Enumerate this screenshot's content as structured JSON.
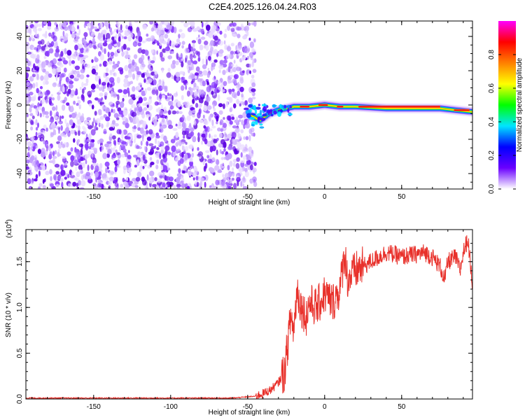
{
  "title": "C2E4.2025.126.04.24.R03",
  "chart_data": [
    {
      "type": "heatmap",
      "xlabel": "Height of straight line (km)",
      "ylabel": "Frequency (Hz)",
      "xlim": [
        -194,
        96
      ],
      "ylim": [
        -49,
        49
      ],
      "xticks": [
        -150,
        -100,
        -50,
        0,
        50
      ],
      "yticks": [
        -40,
        -20,
        0,
        20,
        40
      ],
      "colorbar": {
        "label": "Normalized spectral amplitude",
        "range": [
          0,
          1
        ],
        "ticks": [
          "0.0",
          "0.2",
          "0.4",
          "0.6",
          "0.8"
        ],
        "tick_values": [
          0.0,
          0.2,
          0.4,
          0.6,
          0.8
        ],
        "colormap": [
          "#ffffff",
          "#6a00ff",
          "#0000ff",
          "#00e5ff",
          "#00ff00",
          "#ffff00",
          "#ff8000",
          "#ff0000",
          "#ff00ff"
        ]
      },
      "noise_region": {
        "x": [
          -194,
          -45
        ],
        "y": [
          -49,
          49
        ],
        "level": 0.15,
        "description_color": "#7a2bff"
      },
      "ridge": [
        {
          "x": -48,
          "y": -6
        },
        {
          "x": -42,
          "y": -9
        },
        {
          "x": -36,
          "y": -5
        },
        {
          "x": -30,
          "y": -3
        },
        {
          "x": -25,
          "y": -2
        },
        {
          "x": -20,
          "y": -1
        },
        {
          "x": -10,
          "y": -1
        },
        {
          "x": 0,
          "y": 0
        },
        {
          "x": 10,
          "y": -1
        },
        {
          "x": 20,
          "y": -1
        },
        {
          "x": 40,
          "y": -2
        },
        {
          "x": 60,
          "y": -2
        },
        {
          "x": 75,
          "y": -2
        },
        {
          "x": 85,
          "y": -3
        },
        {
          "x": 96,
          "y": -4
        }
      ]
    },
    {
      "type": "line",
      "xlabel": "Height of straight line (km)",
      "ylabel": "SNR (10 * v/v)",
      "multiplier": "(x10",
      "multiplier_exp": "4",
      "multiplier_close": ")",
      "xlim": [
        -194,
        96
      ],
      "ylim": [
        0,
        1.85
      ],
      "xticks": [
        -150,
        -100,
        -50,
        0,
        50
      ],
      "yticks": [
        "0.0",
        "0.5",
        "1.0",
        "1.5"
      ],
      "ytick_values": [
        0.0,
        0.5,
        1.0,
        1.5
      ],
      "color": "#e8302a",
      "series": [
        {
          "x": [
            -194,
            -150,
            -100,
            -60,
            -45,
            -40,
            -35,
            -30,
            -26,
            -24,
            -22,
            -20,
            -18,
            -15,
            -12,
            -10,
            -5,
            0,
            5,
            10,
            13,
            15,
            20,
            25,
            30,
            35,
            40,
            45,
            50,
            55,
            60,
            65,
            70,
            75,
            78,
            80,
            85,
            88,
            90,
            93,
            96
          ],
          "y": [
            0.01,
            0.01,
            0.01,
            0.01,
            0.03,
            0.06,
            0.1,
            0.18,
            0.3,
            0.6,
            0.9,
            0.75,
            1.2,
            1.0,
            0.9,
            1.05,
            1.0,
            1.15,
            1.05,
            1.2,
            1.6,
            1.3,
            1.4,
            1.45,
            1.5,
            1.55,
            1.6,
            1.58,
            1.55,
            1.57,
            1.58,
            1.6,
            1.55,
            1.45,
            1.3,
            1.5,
            1.55,
            1.4,
            1.6,
            1.75,
            1.25
          ]
        }
      ]
    }
  ]
}
